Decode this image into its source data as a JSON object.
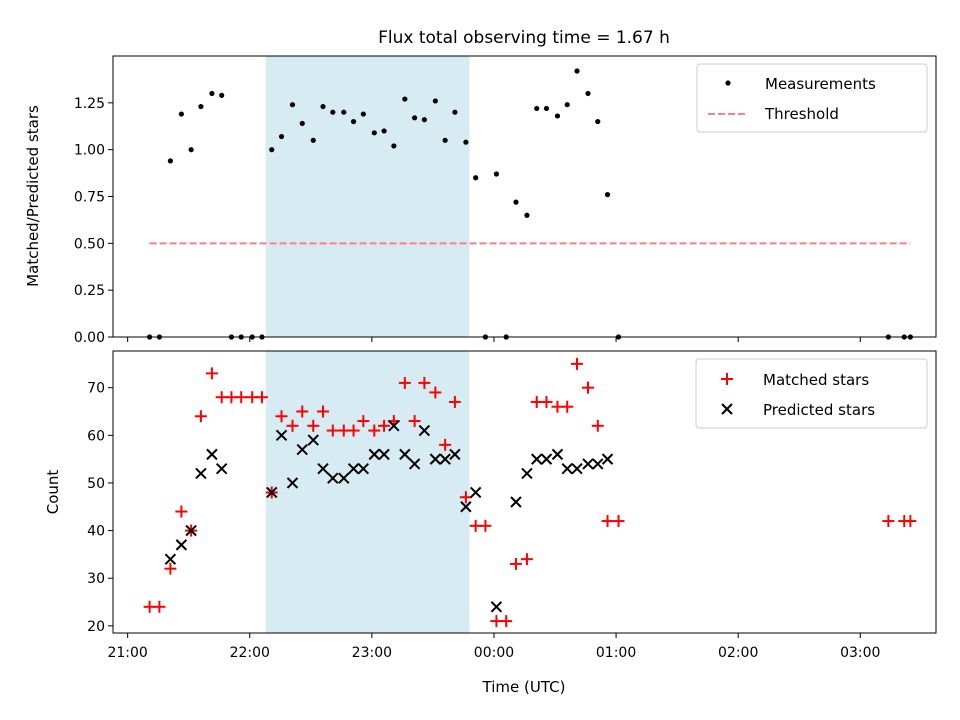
{
  "chart_data": {
    "type": "scatter",
    "title": "Flux total observing time = 1.67 h",
    "xlabel": "Time (UTC)",
    "x_tick_labels": [
      "21:00",
      "22:00",
      "23:00",
      "00:00",
      "01:00",
      "02:00",
      "03:00"
    ],
    "x_tick_hours": [
      0,
      1,
      2,
      3,
      4,
      5,
      6
    ],
    "x_unit": "hours after 21:00 UTC",
    "xlim": [
      -0.12,
      6.62
    ],
    "shaded_interval": [
      1.13,
      2.8
    ],
    "shade_color": "#add8e6",
    "panels": [
      {
        "ylabel": "Matched/Predicted stars",
        "ylim": [
          0,
          1.5
        ],
        "y_ticks": [
          "0.00",
          "0.25",
          "0.50",
          "0.75",
          "1.00",
          "1.25"
        ],
        "y_tick_values": [
          0,
          0.25,
          0.5,
          0.75,
          1.0,
          1.25
        ],
        "legend_position": "top-right",
        "series": [
          {
            "name": "Measurements",
            "marker": "dot",
            "color": "#000000",
            "points": [
              [
                0.18,
                0
              ],
              [
                0.26,
                0
              ],
              [
                0.35,
                0.94
              ],
              [
                0.44,
                1.19
              ],
              [
                0.52,
                1.0
              ],
              [
                0.6,
                1.23
              ],
              [
                0.69,
                1.3
              ],
              [
                0.77,
                1.29
              ],
              [
                0.85,
                0
              ],
              [
                0.93,
                0
              ],
              [
                1.02,
                0
              ],
              [
                1.1,
                0
              ],
              [
                1.18,
                1.0
              ],
              [
                1.26,
                1.07
              ],
              [
                1.35,
                1.24
              ],
              [
                1.43,
                1.14
              ],
              [
                1.52,
                1.05
              ],
              [
                1.6,
                1.23
              ],
              [
                1.68,
                1.2
              ],
              [
                1.77,
                1.2
              ],
              [
                1.85,
                1.15
              ],
              [
                1.93,
                1.19
              ],
              [
                2.02,
                1.09
              ],
              [
                2.1,
                1.1
              ],
              [
                2.18,
                1.02
              ],
              [
                2.27,
                1.27
              ],
              [
                2.35,
                1.17
              ],
              [
                2.43,
                1.16
              ],
              [
                2.52,
                1.26
              ],
              [
                2.6,
                1.05
              ],
              [
                2.68,
                1.2
              ],
              [
                2.77,
                1.04
              ],
              [
                2.85,
                0.85
              ],
              [
                2.93,
                0
              ],
              [
                3.02,
                0.87
              ],
              [
                3.1,
                0
              ],
              [
                3.18,
                0.72
              ],
              [
                3.27,
                0.65
              ],
              [
                3.35,
                1.22
              ],
              [
                3.43,
                1.22
              ],
              [
                3.52,
                1.18
              ],
              [
                3.6,
                1.24
              ],
              [
                3.68,
                1.42
              ],
              [
                3.77,
                1.3
              ],
              [
                3.85,
                1.15
              ],
              [
                3.93,
                0.76
              ],
              [
                4.02,
                0
              ],
              [
                6.23,
                0
              ],
              [
                6.36,
                0
              ],
              [
                6.41,
                0
              ]
            ]
          },
          {
            "name": "Threshold",
            "marker": "dashed-line",
            "color": "#ff7f7f",
            "points": [
              [
                0.18,
                0.5
              ],
              [
                6.41,
                0.5
              ]
            ]
          }
        ]
      },
      {
        "ylabel": "Count",
        "ylim": [
          18.5,
          77.7
        ],
        "y_ticks": [
          "20",
          "30",
          "40",
          "50",
          "60",
          "70"
        ],
        "y_tick_values": [
          20,
          30,
          40,
          50,
          60,
          70
        ],
        "legend_position": "top-right",
        "series": [
          {
            "name": "Matched stars",
            "marker": "plus",
            "color": "#ff0000",
            "points": [
              [
                0.18,
                24
              ],
              [
                0.26,
                24
              ],
              [
                0.35,
                32
              ],
              [
                0.44,
                44
              ],
              [
                0.52,
                40
              ],
              [
                0.6,
                64
              ],
              [
                0.69,
                73
              ],
              [
                0.77,
                68
              ],
              [
                0.85,
                68
              ],
              [
                0.93,
                68
              ],
              [
                1.02,
                68
              ],
              [
                1.1,
                68
              ],
              [
                1.18,
                48
              ],
              [
                1.26,
                64
              ],
              [
                1.35,
                62
              ],
              [
                1.43,
                65
              ],
              [
                1.52,
                62
              ],
              [
                1.6,
                65
              ],
              [
                1.68,
                61
              ],
              [
                1.77,
                61
              ],
              [
                1.85,
                61
              ],
              [
                1.93,
                63
              ],
              [
                2.02,
                61
              ],
              [
                2.1,
                62
              ],
              [
                2.18,
                63
              ],
              [
                2.27,
                71
              ],
              [
                2.35,
                63
              ],
              [
                2.43,
                71
              ],
              [
                2.52,
                69
              ],
              [
                2.6,
                58
              ],
              [
                2.68,
                67
              ],
              [
                2.77,
                47
              ],
              [
                2.85,
                41
              ],
              [
                2.93,
                41
              ],
              [
                3.02,
                21
              ],
              [
                3.1,
                21
              ],
              [
                3.18,
                33
              ],
              [
                3.27,
                34
              ],
              [
                3.35,
                67
              ],
              [
                3.43,
                67
              ],
              [
                3.52,
                66
              ],
              [
                3.6,
                66
              ],
              [
                3.68,
                75
              ],
              [
                3.77,
                70
              ],
              [
                3.85,
                62
              ],
              [
                3.93,
                42
              ],
              [
                4.02,
                42
              ],
              [
                6.23,
                42
              ],
              [
                6.36,
                42
              ],
              [
                6.41,
                42
              ]
            ]
          },
          {
            "name": "Predicted stars",
            "marker": "x",
            "color": "#000000",
            "points": [
              [
                0.35,
                34
              ],
              [
                0.44,
                37
              ],
              [
                0.52,
                40
              ],
              [
                0.6,
                52
              ],
              [
                0.69,
                56
              ],
              [
                0.77,
                53
              ],
              [
                1.18,
                48
              ],
              [
                1.26,
                60
              ],
              [
                1.35,
                50
              ],
              [
                1.43,
                57
              ],
              [
                1.52,
                59
              ],
              [
                1.6,
                53
              ],
              [
                1.68,
                51
              ],
              [
                1.77,
                51
              ],
              [
                1.85,
                53
              ],
              [
                1.93,
                53
              ],
              [
                2.02,
                56
              ],
              [
                2.1,
                56
              ],
              [
                2.18,
                62
              ],
              [
                2.27,
                56
              ],
              [
                2.35,
                54
              ],
              [
                2.43,
                61
              ],
              [
                2.52,
                55
              ],
              [
                2.6,
                55
              ],
              [
                2.68,
                56
              ],
              [
                2.77,
                45
              ],
              [
                2.85,
                48
              ],
              [
                3.02,
                24
              ],
              [
                3.18,
                46
              ],
              [
                3.27,
                52
              ],
              [
                3.35,
                55
              ],
              [
                3.43,
                55
              ],
              [
                3.52,
                56
              ],
              [
                3.6,
                53
              ],
              [
                3.68,
                53
              ],
              [
                3.77,
                54
              ],
              [
                3.85,
                54
              ],
              [
                3.93,
                55
              ]
            ]
          }
        ]
      }
    ]
  }
}
